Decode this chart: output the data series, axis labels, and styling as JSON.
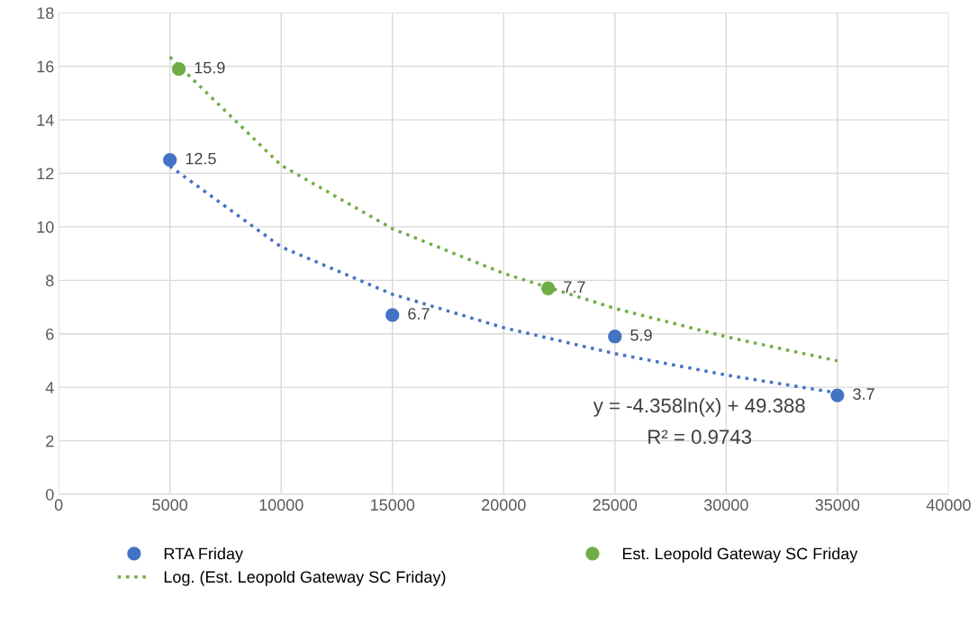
{
  "chart_data": {
    "type": "scatter",
    "xlim": [
      0,
      40000
    ],
    "xticks": [
      0,
      5000,
      10000,
      15000,
      20000,
      25000,
      30000,
      35000,
      40000
    ],
    "ylim": [
      0,
      18
    ],
    "yticks": [
      0,
      2,
      4,
      6,
      8,
      10,
      12,
      14,
      16,
      18
    ],
    "grid": true,
    "legend": "bottom",
    "marker": "circle",
    "series": [
      {
        "name": "RTA Friday",
        "color": "#4472c4",
        "x": [
          5000,
          15000,
          25000,
          35000
        ],
        "values": [
          12.5,
          6.7,
          5.9,
          3.7
        ],
        "value_labels": [
          "12.5",
          "6.7",
          "5.9",
          "3.7"
        ]
      },
      {
        "name": "Est. Leopold Gateway SC Friday",
        "color": "#70ad47",
        "x": [
          5400,
          22000
        ],
        "values": [
          15.9,
          7.7
        ],
        "value_labels": [
          "15.9",
          "7.7"
        ]
      },
      {
        "name": "Log. (Est. Leopold Gateway SC Friday)",
        "type": "line",
        "line_style": "dotted",
        "marker": "none",
        "color": "#70ad47",
        "x": [
          5000,
          10000,
          15000,
          20000,
          25000,
          30000,
          35000
        ],
        "values": [
          16.35,
          12.3,
          9.93,
          8.26,
          6.95,
          5.89,
          4.99
        ]
      },
      {
        "type": "line",
        "line_style": "dotted",
        "marker": "none",
        "color": "#4472c4",
        "x": [
          5000,
          10000,
          15000,
          20000,
          25000,
          30000,
          35000
        ],
        "values": [
          12.27,
          9.25,
          7.48,
          6.23,
          5.26,
          4.46,
          3.79
        ]
      }
    ],
    "annotations": [
      "y = -4.358ln(x) + 49.388",
      "R² = 0.9743"
    ]
  }
}
